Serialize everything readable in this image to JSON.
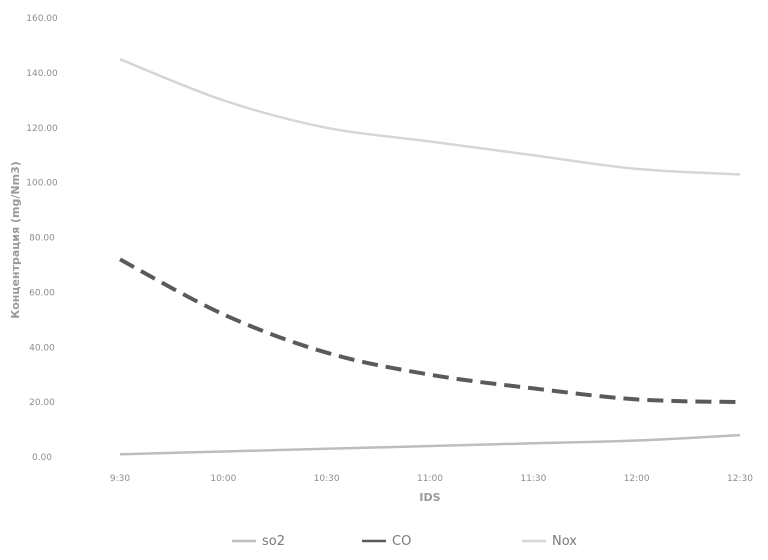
{
  "chart_data": {
    "type": "line",
    "title": "",
    "xlabel": "IDS",
    "ylabel": "Концентрация (mg/Nm3)",
    "categories": [
      "9:30",
      "10:00",
      "10:30",
      "11:00",
      "11:30",
      "12:00",
      "12:30"
    ],
    "ylim": [
      0,
      160
    ],
    "ytick_labels": [
      "0.00",
      "20.00",
      "40.00",
      "60.00",
      "80.00",
      "100.00",
      "120.00",
      "140.00",
      "160.00"
    ],
    "grid": false,
    "legend_position": "bottom",
    "series": [
      {
        "name": "so2",
        "values": [
          1,
          2,
          3,
          4,
          5,
          6,
          8
        ],
        "color": "#bdbdbd",
        "style": "solid"
      },
      {
        "name": "CO",
        "values": [
          72,
          52,
          38,
          30,
          25,
          21,
          20
        ],
        "color": "#5a5a5a",
        "style": "dashed"
      },
      {
        "name": "Nox",
        "values": [
          145,
          130,
          120,
          115,
          110,
          105,
          103
        ],
        "color": "#d6d6d6",
        "style": "solid"
      }
    ]
  }
}
